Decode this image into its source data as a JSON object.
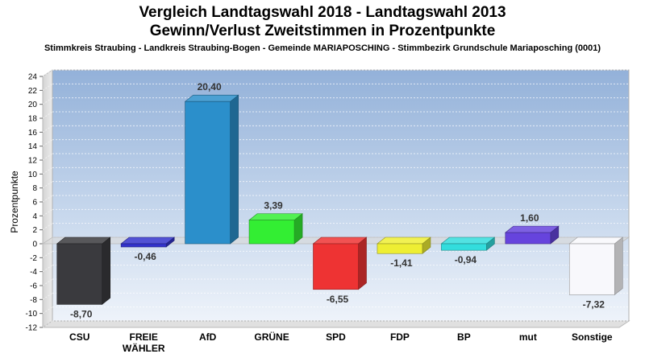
{
  "title_line1": "Vergleich Landtagswahl 2018 - Landtagswahl 2013",
  "title_line2": "Gewinn/Verlust Zweitstimmen in Prozentpunkte",
  "subtitle": "Stimmkreis Straubing - Landkreis Straubing-Bogen - Gemeinde MARIAPOSCHING - Stimmbezirk Grundschule Mariaposching (0001)",
  "chart_data": {
    "type": "bar",
    "title": "Vergleich Landtagswahl 2018 - Landtagswahl 2013 Gewinn/Verlust Zweitstimmen in Prozentpunkte",
    "ylabel": "Prozentpunkte",
    "xlabel": "",
    "ylim": [
      -12,
      24
    ],
    "yticks": [
      24,
      22,
      20,
      18,
      16,
      14,
      12,
      10,
      8,
      6,
      4,
      2,
      0,
      -2,
      -4,
      -6,
      -8,
      -10,
      -12
    ],
    "grid": true,
    "categories": [
      [
        "CSU"
      ],
      [
        "FREIE",
        "WÄHLER"
      ],
      [
        "AfD"
      ],
      [
        "GRÜNE"
      ],
      [
        "SPD"
      ],
      [
        "FDP"
      ],
      [
        "BP"
      ],
      [
        "mut"
      ],
      [
        "Sonstige"
      ]
    ],
    "values": [
      -8.7,
      -0.46,
      20.4,
      3.39,
      -6.55,
      -1.41,
      -0.94,
      1.6,
      -7.32
    ],
    "value_labels": [
      "-8,70",
      "-0,46",
      "20,40",
      "3,39",
      "-6,55",
      "-1,41",
      "-0,94",
      "1,60",
      "-7,32"
    ],
    "colors": [
      "#3a3a3e",
      "#3333cc",
      "#2b8fcb",
      "#33ee33",
      "#ee3333",
      "#eeee33",
      "#33dddd",
      "#6644dd",
      "#f8f8fc"
    ]
  }
}
